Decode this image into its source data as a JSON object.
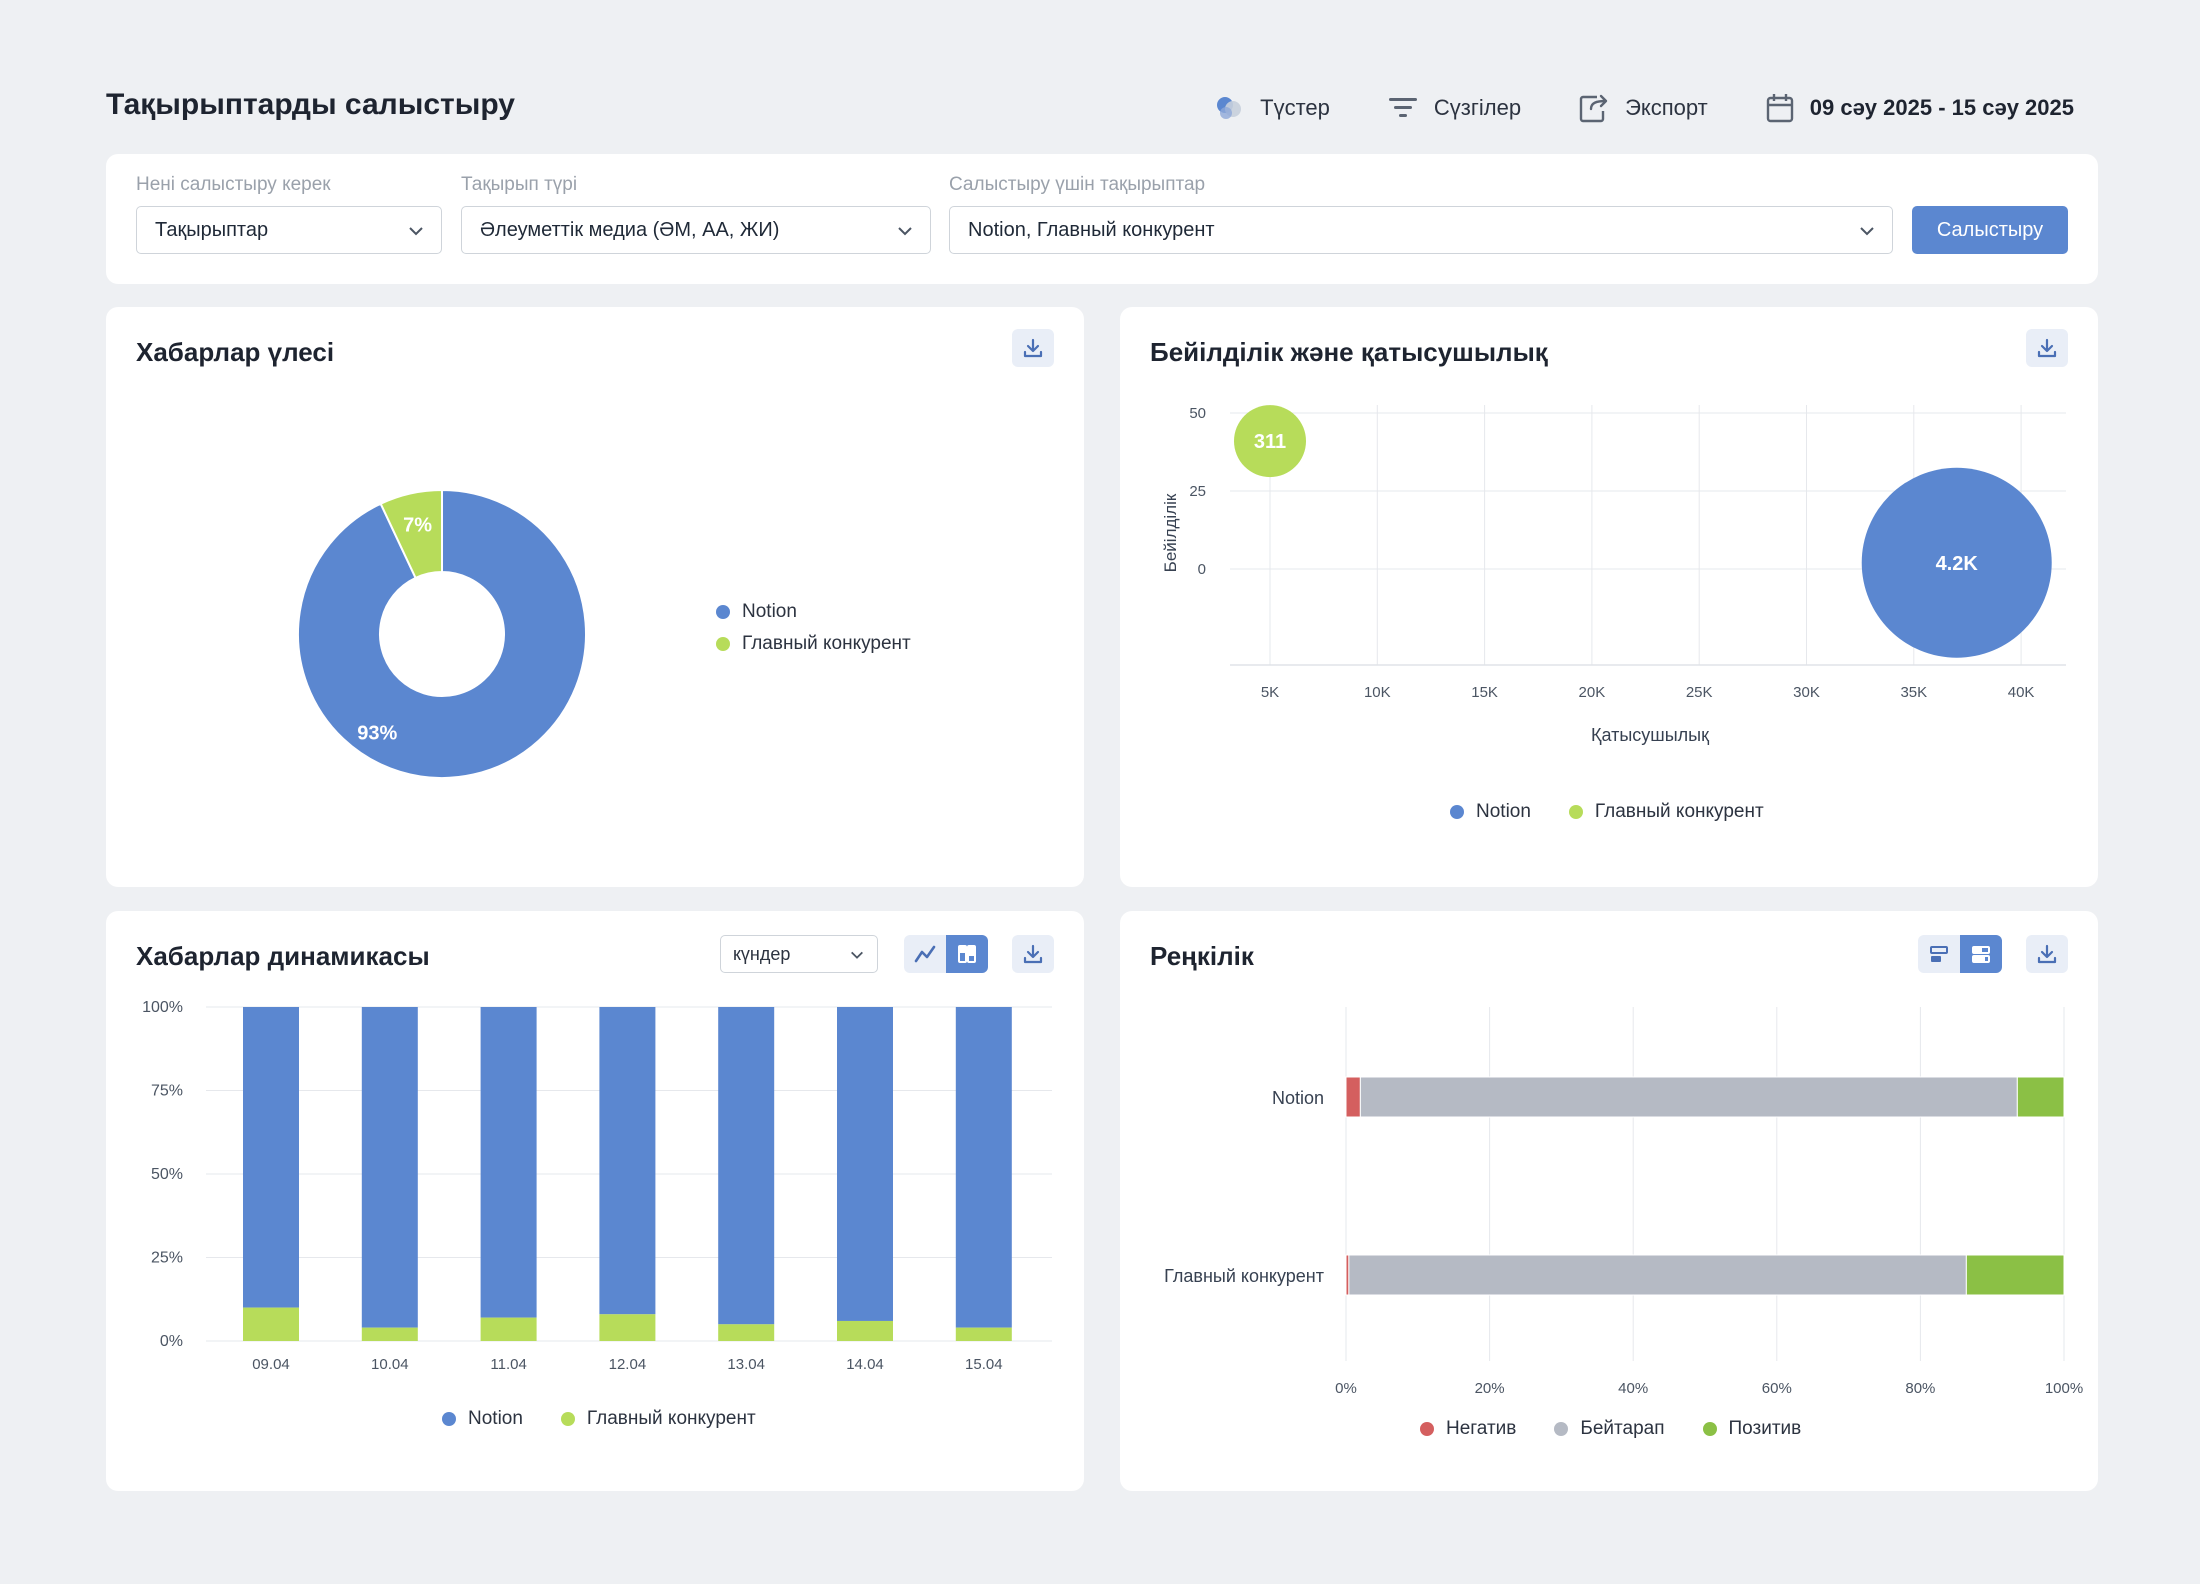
{
  "header": {
    "title": "Тақырыптарды салыстыру",
    "colors_label": "Түстер",
    "filters_label": "Сүзгілер",
    "export_label": "Экспорт",
    "date_range": "09 сәу 2025 - 15 сәу 2025"
  },
  "filters": {
    "compare_label": "Нені салыстыру керек",
    "compare_value": "Тақырыптар",
    "type_label": "Тақырып түрі",
    "type_value": "Әлеуметтік медиа (ӘМ, АА, ЖИ)",
    "topics_label": "Салыстыру үшін тақырыптар",
    "topics_value": "Notion, Главный конкурент",
    "submit_label": "Салыстыру"
  },
  "colors": {
    "notion": "#5b87d0",
    "competitor": "#b7dc5a",
    "negative": "#d45f5f",
    "neutral": "#b5bac4",
    "positive": "#8bc045"
  },
  "share": {
    "title": "Хабарлар үлесі",
    "legend": [
      "Notion",
      "Главный конкурент"
    ],
    "chart_data": {
      "type": "pie",
      "labels": [
        "Notion",
        "Главный конкурент"
      ],
      "values": [
        93,
        7
      ],
      "value_labels": [
        "93%",
        "7%"
      ]
    }
  },
  "reach": {
    "title": "Бейілділік және қатысушылық",
    "legend": [
      "Notion",
      "Главный конкурент"
    ],
    "chart_data": {
      "type": "scatter",
      "xlabel": "Қатысушылық",
      "ylabel": "Бейілділік",
      "x_ticks": [
        "5K",
        "10K",
        "15K",
        "20K",
        "25K",
        "30K",
        "35K",
        "40K"
      ],
      "y_ticks": [
        "50",
        "25",
        "0"
      ],
      "series": [
        {
          "name": "Notion",
          "x": 37000,
          "y": 2,
          "bubble_label": "4.2K"
        },
        {
          "name": "Главный конкурент",
          "x": 5000,
          "y": 41,
          "bubble_label": "311"
        }
      ]
    }
  },
  "dynamics": {
    "title": "Хабарлар динамикасы",
    "period_value": "күндер",
    "legend": [
      "Notion",
      "Главный конкурент"
    ],
    "chart_data": {
      "type": "bar",
      "stacked": true,
      "categories": [
        "09.04",
        "10.04",
        "11.04",
        "12.04",
        "13.04",
        "14.04",
        "15.04"
      ],
      "y_ticks": [
        "100%",
        "75%",
        "50%",
        "25%",
        "0%"
      ],
      "series": [
        {
          "name": "Notion",
          "values": [
            90,
            96,
            93,
            92,
            95,
            94,
            96
          ]
        },
        {
          "name": "Главный конкурент",
          "values": [
            10,
            4,
            7,
            8,
            5,
            6,
            4
          ]
        }
      ]
    }
  },
  "sentiment": {
    "title": "Реңкілік",
    "legend": [
      "Негатив",
      "Бейтарап",
      "Позитив"
    ],
    "chart_data": {
      "type": "bar",
      "orientation": "horizontal",
      "stacked": true,
      "categories": [
        "Notion",
        "Главный конкурент"
      ],
      "x_ticks": [
        "0%",
        "20%",
        "40%",
        "60%",
        "80%",
        "100%"
      ],
      "series": [
        {
          "name": "Негатив",
          "values": [
            2,
            0.4
          ]
        },
        {
          "name": "Бейтарап",
          "values": [
            91.5,
            86
          ]
        },
        {
          "name": "Позитив",
          "values": [
            6.5,
            13.6
          ]
        }
      ]
    }
  }
}
